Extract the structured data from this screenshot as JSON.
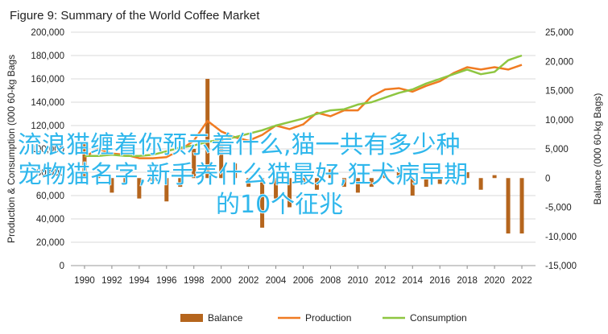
{
  "chart_data": {
    "type": "bar",
    "title": "Figure 9: Summary of the World Coffee Market",
    "ylabel_left": "Production & Consumption (000 60-kg Bags",
    "ylabel_right": "Balance (000 60-kg Bags)",
    "x_ticks": [
      "1990",
      "1992",
      "1994",
      "1996",
      "1998",
      "2000",
      "2002",
      "2004",
      "2006",
      "2008",
      "2010",
      "2012",
      "2014",
      "2016",
      "2018",
      "2020",
      "2022"
    ],
    "y_left_ticks": [
      "0",
      "20,000",
      "40,000",
      "60,000",
      "80,000",
      "100,000",
      "120,000",
      "140,000",
      "160,000",
      "180,000",
      "200,000"
    ],
    "y_right_ticks": [
      "-15,000",
      "-10,000",
      "-5,000",
      "0",
      "5,000",
      "10,000",
      "15,000",
      "20,000",
      "25,000"
    ],
    "ylim_left": [
      0,
      200000
    ],
    "ylim_right": [
      -15000,
      25000
    ],
    "legend_position": "bottom",
    "colors": {
      "balance": "#b5651d",
      "production": "#f07b22",
      "consumption": "#8ec641",
      "grid": "#d9d9d9"
    },
    "series": [
      {
        "name": "Balance",
        "axis": "right",
        "x": [
          1990,
          1991,
          1992,
          1993,
          1994,
          1995,
          1996,
          1997,
          1998,
          1999,
          2000,
          2001,
          2002,
          2003,
          2004,
          2005,
          2006,
          2007,
          2008,
          2009,
          2010,
          2011,
          2012,
          2013,
          2014,
          2015,
          2016,
          2017,
          2018,
          2019,
          2020,
          2021,
          2022
        ],
        "values": [
          6000,
          500,
          -2500,
          -1000,
          -3500,
          -500,
          -4000,
          -1500,
          5000,
          17000,
          6500,
          2500,
          -1500,
          -8500,
          -3500,
          -5000,
          -1000,
          -2000,
          1500,
          -1500,
          -2500,
          -1500,
          500,
          1000,
          -3000,
          -1500,
          -1000,
          0,
          1000,
          -2000,
          500,
          -9500,
          -9500
        ]
      },
      {
        "name": "Production",
        "axis": "left",
        "x": [
          1990,
          1991,
          1992,
          1993,
          1994,
          1995,
          1996,
          1997,
          1998,
          1999,
          2000,
          2001,
          2002,
          2003,
          2004,
          2005,
          2006,
          2007,
          2008,
          2009,
          2010,
          2011,
          2012,
          2013,
          2014,
          2015,
          2016,
          2017,
          2018,
          2019,
          2020,
          2021,
          2022
        ],
        "values": [
          93000,
          100000,
          96000,
          95000,
          92000,
          92000,
          93000,
          99000,
          107000,
          124000,
          115000,
          110000,
          107000,
          112000,
          120000,
          117000,
          121000,
          131000,
          128000,
          133000,
          133000,
          145000,
          151000,
          152000,
          149000,
          154000,
          158000,
          165000,
          170000,
          168000,
          170000,
          168000,
          172000
        ]
      },
      {
        "name": "Consumption",
        "axis": "left",
        "x": [
          1990,
          1991,
          1992,
          1993,
          1994,
          1995,
          1996,
          1997,
          1998,
          1999,
          2000,
          2001,
          2002,
          2003,
          2004,
          2005,
          2006,
          2007,
          2008,
          2009,
          2010,
          2011,
          2012,
          2013,
          2014,
          2015,
          2016,
          2017,
          2018,
          2019,
          2020,
          2021,
          2022
        ],
        "values": [
          94000,
          94000,
          95000,
          94000,
          94000,
          95000,
          98000,
          101000,
          103000,
          106000,
          108000,
          110000,
          113000,
          116000,
          120000,
          123000,
          126000,
          130000,
          133000,
          134000,
          138000,
          140000,
          144000,
          148000,
          151000,
          156000,
          160000,
          164000,
          168000,
          164000,
          166000,
          176000,
          180000
        ]
      }
    ]
  },
  "overlay_text": {
    "line1": "流浪猫缠着你预示着什么,猫一共有多少种",
    "line2": "宠物猫名字,新手养什么猫最好,狂犬病早期",
    "line3": "的10个征兆"
  }
}
